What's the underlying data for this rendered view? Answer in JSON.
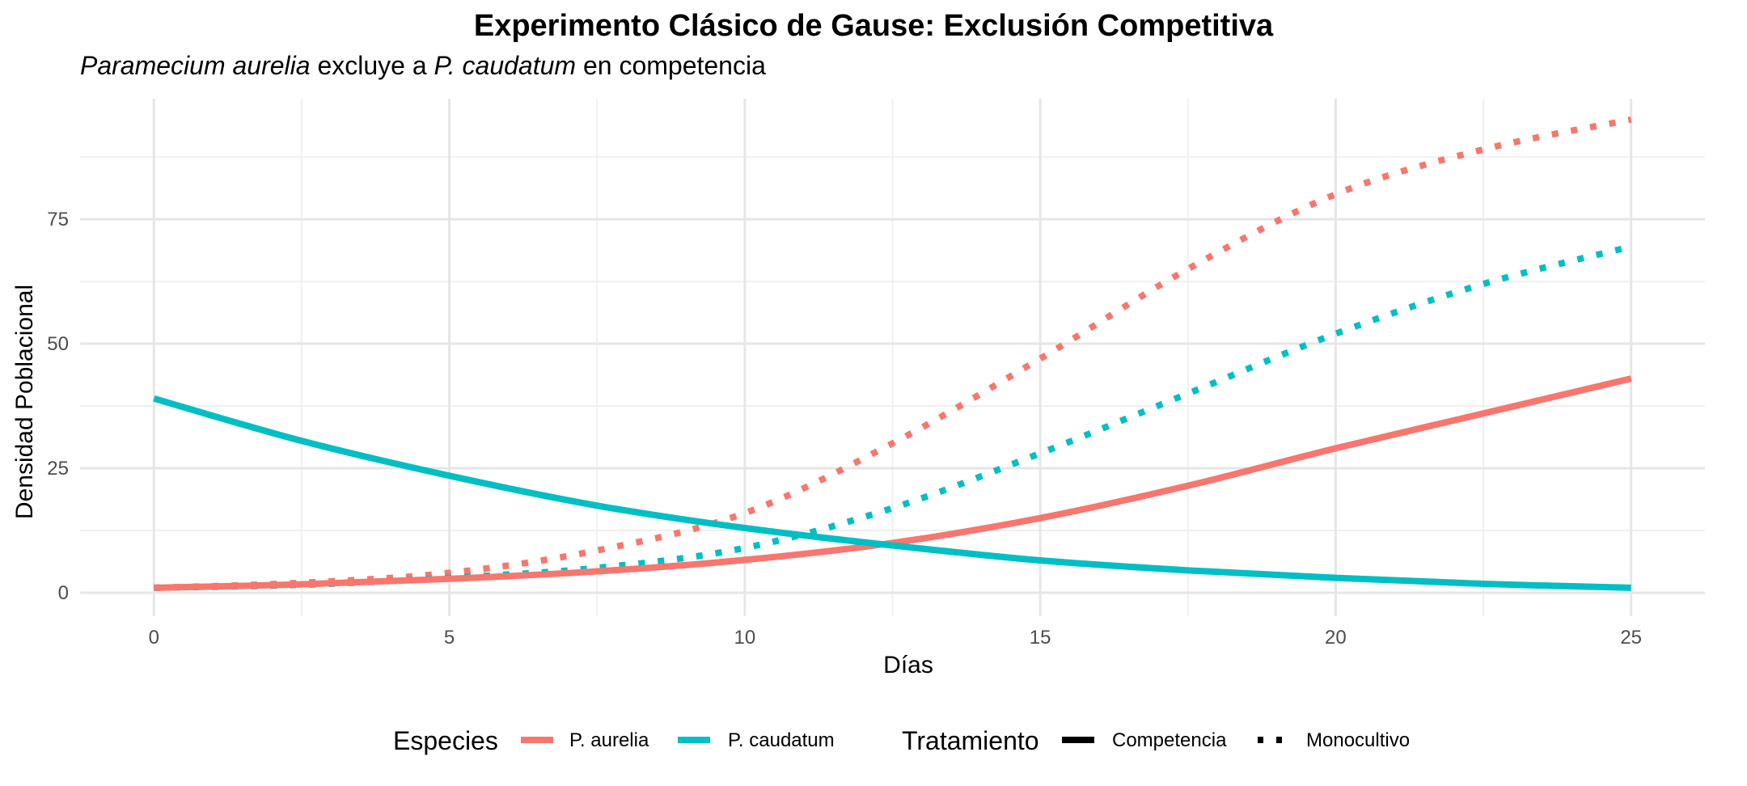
{
  "chart_data": {
    "type": "line",
    "title": "Experimento Clásico de Gause: Exclusión Competitiva",
    "subtitle": {
      "parts": [
        {
          "text": "Paramecium aurelia",
          "italic": true
        },
        {
          "text": " excluye a ",
          "italic": false
        },
        {
          "text": "P. caudatum",
          "italic": true
        },
        {
          "text": " en competencia",
          "italic": false
        }
      ]
    },
    "xlabel": "Días",
    "ylabel": "Densidad Poblacional",
    "xlim": [
      -1.25,
      26.25
    ],
    "ylim": [
      -4.7,
      99.2
    ],
    "x_ticks": [
      0,
      5,
      10,
      15,
      20,
      25
    ],
    "y_ticks": [
      0,
      25,
      50,
      75
    ],
    "grid": true,
    "legend_position": "bottom",
    "colors": {
      "P. aurelia": "#F8766D",
      "P. caudatum": "#00BFC4"
    },
    "legend": {
      "species_title": "Especies",
      "species": [
        {
          "label": "P. aurelia",
          "color": "#F8766D"
        },
        {
          "label": "P. caudatum",
          "color": "#00BFC4"
        }
      ],
      "treatment_title": "Tratamiento",
      "treatments": [
        {
          "label": "Competencia",
          "style": "solid"
        },
        {
          "label": "Monocultivo",
          "style": "dotted"
        }
      ]
    },
    "x": [
      0,
      2.5,
      5,
      7.5,
      10,
      12.5,
      15,
      17.5,
      20,
      22.5,
      25
    ],
    "series": [
      {
        "name": "P. aurelia",
        "treatment": "Competencia",
        "color": "#F8766D",
        "style": "solid",
        "values": [
          1,
          1.7,
          2.8,
          4.3,
          6.6,
          10,
          15,
          21.5,
          29,
          36,
          43
        ]
      },
      {
        "name": "P. caudatum",
        "treatment": "Competencia",
        "color": "#00BFC4",
        "style": "solid",
        "values": [
          39,
          30.5,
          23.5,
          17.5,
          13,
          9.5,
          6.5,
          4.5,
          3,
          1.8,
          1
        ]
      },
      {
        "name": "P. aurelia",
        "treatment": "Monocultivo",
        "color": "#F8766D",
        "style": "dotted",
        "values": [
          1,
          2,
          4,
          8.5,
          16,
          30,
          47,
          65,
          80,
          89,
          95
        ]
      },
      {
        "name": "P. caudatum",
        "treatment": "Monocultivo",
        "color": "#00BFC4",
        "style": "dotted",
        "values": [
          1,
          1.6,
          3,
          5,
          9,
          17,
          28,
          40,
          52,
          62,
          69.5
        ]
      }
    ]
  }
}
